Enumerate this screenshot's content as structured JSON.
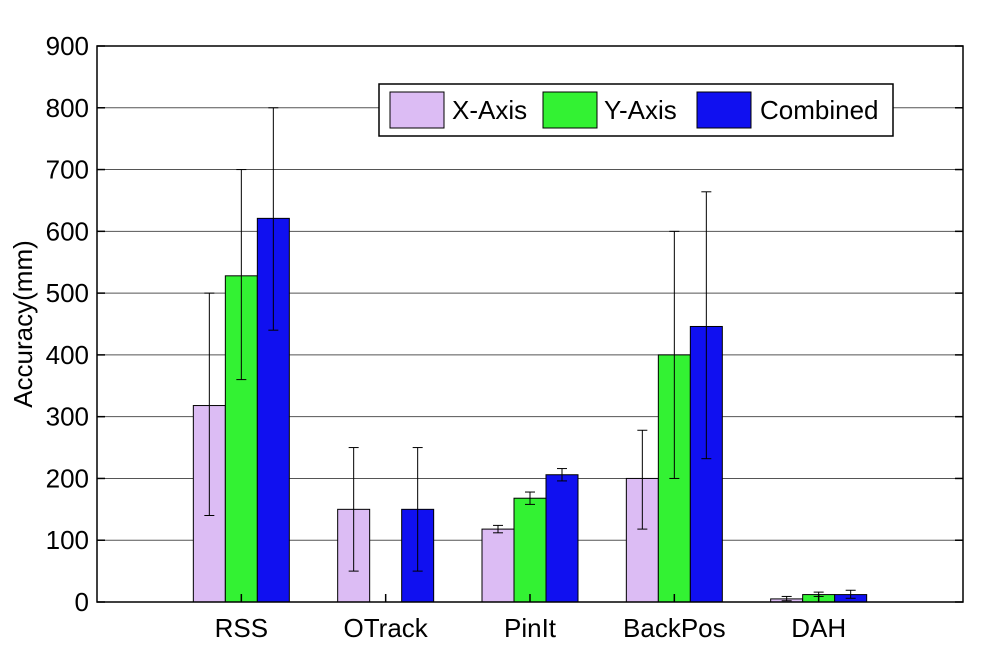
{
  "chart_data": {
    "type": "bar",
    "title": "",
    "xlabel": "",
    "ylabel": "Accuracy(mm)",
    "ylim": [
      0,
      900
    ],
    "yticks": [
      0,
      100,
      200,
      300,
      400,
      500,
      600,
      700,
      800,
      900
    ],
    "grid": true,
    "legend_position": "top-right",
    "categories": [
      "RSS",
      "OTrack",
      "PinIt",
      "BackPos",
      "DAH"
    ],
    "series": [
      {
        "name": "X-Axis",
        "color": "#dcbcf4",
        "values": [
          318,
          150,
          118,
          200,
          5
        ],
        "err_low": [
          140,
          50,
          112,
          118,
          2
        ],
        "err_high": [
          500,
          250,
          124,
          278,
          9
        ]
      },
      {
        "name": "Y-Axis",
        "color": "#33f233",
        "values": [
          528,
          0,
          168,
          400,
          12
        ],
        "err_low": [
          360,
          null,
          158,
          200,
          9
        ],
        "err_high": [
          700,
          null,
          178,
          600,
          16
        ]
      },
      {
        "name": "Combined",
        "color": "#1010f0",
        "values": [
          621,
          150,
          206,
          446,
          12
        ],
        "err_low": [
          440,
          50,
          196,
          232,
          6
        ],
        "err_high": [
          800,
          250,
          216,
          664,
          19
        ]
      }
    ]
  }
}
